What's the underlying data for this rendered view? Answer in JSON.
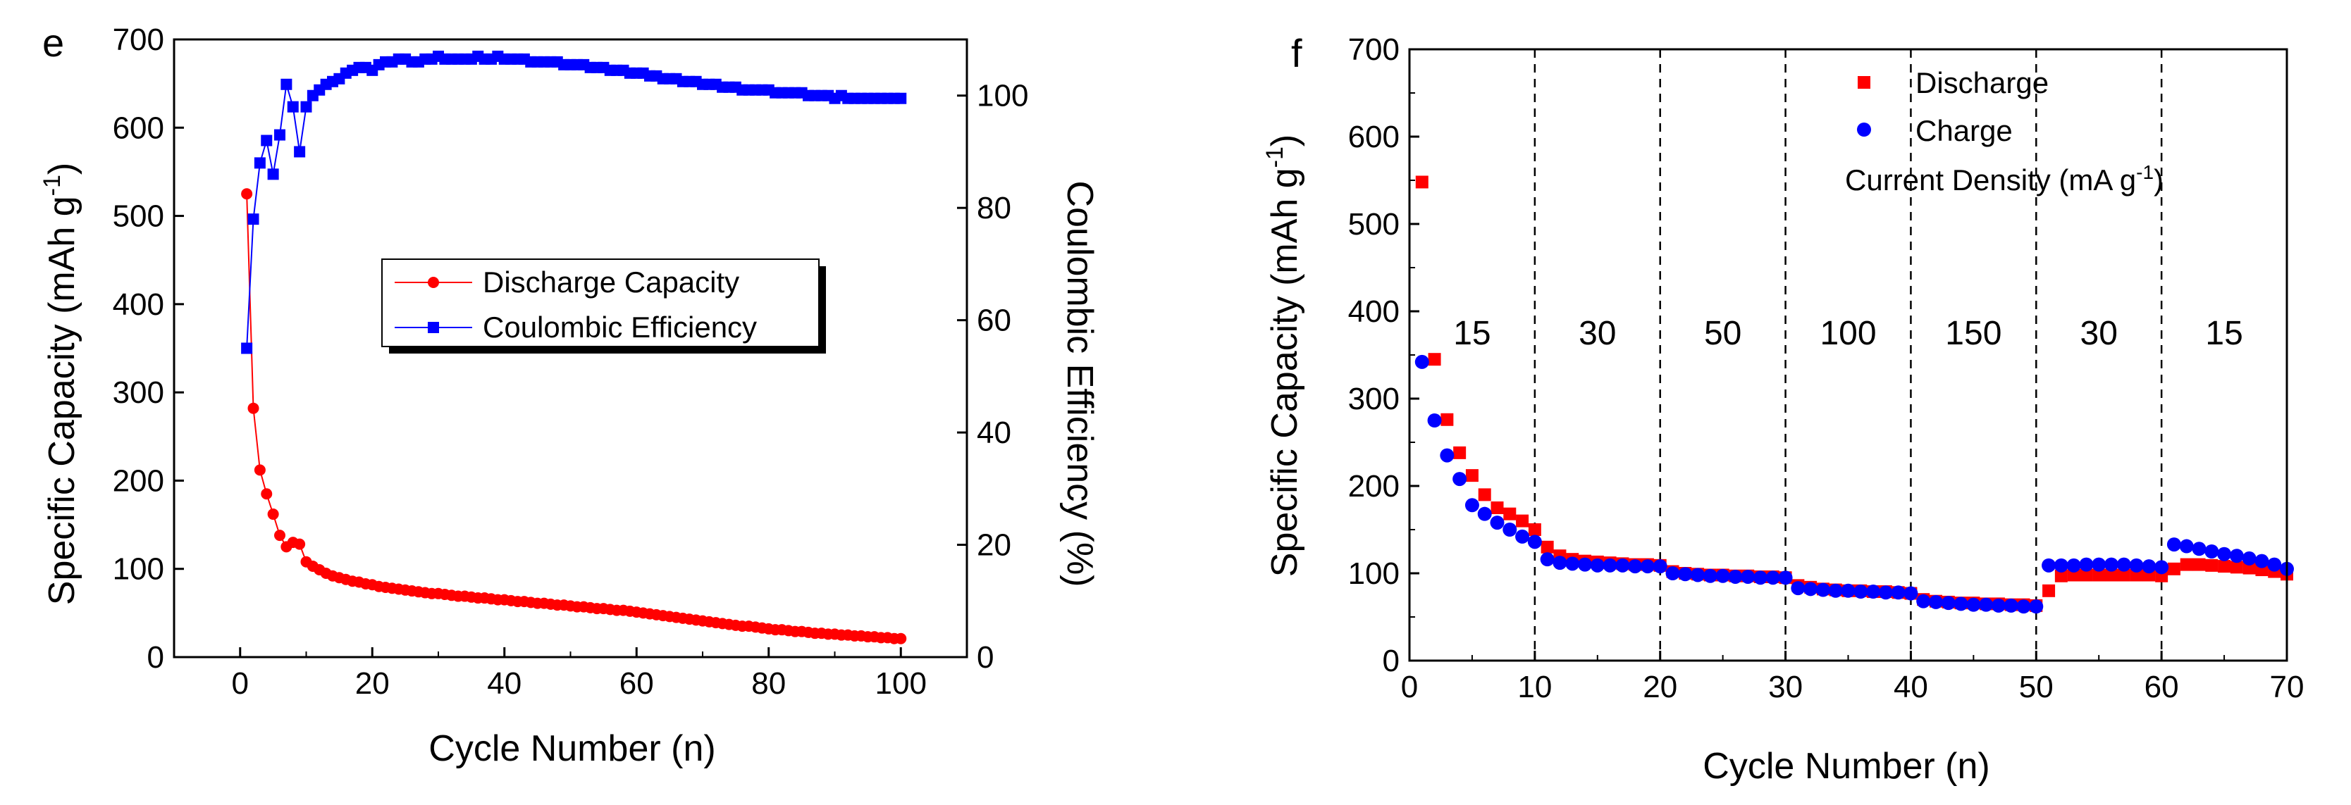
{
  "chart_data": [
    {
      "panel_label": "e",
      "type": "scatter",
      "xlabel": "Cycle Number (n)",
      "ylabel": "Specific Capacity (mAh g",
      "ylabel_sup": "-1",
      "ylabel_end": ")",
      "y2label": "Coulombic Efficiency (%)",
      "xlim": [
        -10,
        110
      ],
      "ylim": [
        0,
        700
      ],
      "y2lim": [
        0,
        110
      ],
      "xticks": [
        "0",
        "20",
        "40",
        "60",
        "80",
        "100"
      ],
      "yticks": [
        "0",
        "100",
        "200",
        "300",
        "400",
        "500",
        "600",
        "700"
      ],
      "y2ticks": [
        "0",
        "20",
        "40",
        "60",
        "80",
        "100"
      ],
      "legend": [
        {
          "label": "Discharge Capacity",
          "color": "#ff0000",
          "marker": "circle"
        },
        {
          "label": "Coulombic Efficiency",
          "color": "#0000ff",
          "marker": "square"
        }
      ],
      "series": [
        {
          "name": "Discharge Capacity",
          "axis": "left",
          "color": "#ff0000",
          "x": [
            1,
            2,
            3,
            4,
            5,
            6,
            7,
            8,
            9,
            10,
            11,
            12,
            13,
            14,
            15,
            16,
            17,
            18,
            19,
            20,
            21,
            22,
            23,
            24,
            25,
            26,
            27,
            28,
            29,
            30,
            31,
            32,
            33,
            34,
            35,
            36,
            37,
            38,
            39,
            40,
            41,
            42,
            43,
            44,
            45,
            46,
            47,
            48,
            49,
            50,
            51,
            52,
            53,
            54,
            55,
            56,
            57,
            58,
            59,
            60,
            61,
            62,
            63,
            64,
            65,
            66,
            67,
            68,
            69,
            70,
            71,
            72,
            73,
            74,
            75,
            76,
            77,
            78,
            79,
            80,
            81,
            82,
            83,
            84,
            85,
            86,
            87,
            88,
            89,
            90,
            91,
            92,
            93,
            94,
            95,
            96,
            97,
            98,
            99,
            100
          ],
          "values": [
            525,
            282,
            212,
            185,
            162,
            138,
            125,
            130,
            128,
            108,
            103,
            99,
            95,
            92,
            90,
            88,
            86,
            85,
            83,
            82,
            80,
            79,
            78,
            77,
            76,
            75,
            74,
            73,
            72,
            72,
            71,
            70,
            69,
            69,
            68,
            67,
            67,
            66,
            65,
            65,
            64,
            63,
            63,
            62,
            61,
            61,
            60,
            59,
            59,
            58,
            57,
            57,
            56,
            55,
            55,
            54,
            53,
            53,
            52,
            51,
            50,
            49,
            48,
            47,
            46,
            45,
            44,
            43,
            42,
            41,
            40,
            39,
            38,
            37,
            36,
            35,
            35,
            34,
            33,
            32,
            31,
            31,
            30,
            29,
            29,
            28,
            27,
            27,
            26,
            26,
            25,
            25,
            24,
            24,
            23,
            23,
            22,
            22,
            21,
            21
          ]
        },
        {
          "name": "Coulombic Efficiency",
          "axis": "right",
          "color": "#0000ff",
          "x": [
            1,
            2,
            3,
            4,
            5,
            6,
            7,
            8,
            9,
            10,
            11,
            12,
            13,
            14,
            15,
            16,
            17,
            18,
            19,
            20,
            21,
            22,
            23,
            24,
            25,
            26,
            27,
            28,
            29,
            30,
            31,
            32,
            33,
            34,
            35,
            36,
            37,
            38,
            39,
            40,
            41,
            42,
            43,
            44,
            45,
            46,
            47,
            48,
            49,
            50,
            51,
            52,
            53,
            54,
            55,
            56,
            57,
            58,
            59,
            60,
            61,
            62,
            63,
            64,
            65,
            66,
            67,
            68,
            69,
            70,
            71,
            72,
            73,
            74,
            75,
            76,
            77,
            78,
            79,
            80,
            81,
            82,
            83,
            84,
            85,
            86,
            87,
            88,
            89,
            90,
            91,
            92,
            93,
            94,
            95,
            96,
            97,
            98,
            99,
            100
          ],
          "values": [
            55,
            78,
            88,
            92,
            86,
            93,
            102,
            98,
            90,
            98,
            100,
            101,
            102,
            102.5,
            103,
            104,
            104.5,
            105,
            105,
            104.5,
            105.5,
            106,
            106,
            106.5,
            106.5,
            106,
            106,
            106.5,
            106.5,
            107,
            106.5,
            106.5,
            106.5,
            106.5,
            106.5,
            107,
            106.5,
            106.5,
            107,
            106.5,
            106.5,
            106.5,
            106.5,
            106,
            106,
            106,
            106,
            106,
            105.5,
            105.5,
            105.5,
            105.5,
            105,
            105,
            105,
            104.5,
            104.5,
            104.5,
            104,
            104,
            104,
            103.5,
            103.5,
            103,
            103,
            103,
            102.5,
            102.5,
            102.5,
            102,
            102,
            102,
            101.5,
            101.5,
            101.5,
            101,
            101,
            101,
            101,
            101,
            100.5,
            100.5,
            100.5,
            100.5,
            100.5,
            100,
            100,
            100,
            100,
            99.5,
            100,
            99.5,
            99.5,
            99.5,
            99.5,
            99.5,
            99.5,
            99.5,
            99.5,
            99.5
          ]
        }
      ]
    },
    {
      "panel_label": "f",
      "type": "scatter",
      "xlabel": "Cycle Number (n)",
      "ylabel": "Specific Capacity (mAh g",
      "ylabel_sup": "-1",
      "ylabel_end": ")",
      "xlim": [
        0,
        70
      ],
      "ylim": [
        0,
        700
      ],
      "xticks": [
        "0",
        "10",
        "20",
        "30",
        "40",
        "50",
        "60",
        "70"
      ],
      "yticks": [
        "0",
        "100",
        "200",
        "300",
        "400",
        "500",
        "600",
        "700"
      ],
      "vlines": [
        10,
        20,
        30,
        40,
        50,
        60
      ],
      "legend": [
        {
          "label": "Discharge",
          "color": "#ff0000",
          "marker": "square"
        },
        {
          "label": "Charge",
          "color": "#0000ff",
          "marker": "circle"
        }
      ],
      "legend_note": "Current Density (mA g",
      "legend_note_sup": "-1",
      "legend_note_end": ")",
      "regions": [
        {
          "label": "15",
          "x": 5
        },
        {
          "label": "30",
          "x": 15
        },
        {
          "label": "50",
          "x": 25
        },
        {
          "label": "100",
          "x": 35
        },
        {
          "label": "150",
          "x": 45
        },
        {
          "label": "30",
          "x": 55
        },
        {
          "label": "15",
          "x": 65
        }
      ],
      "series": [
        {
          "name": "Discharge",
          "color": "#ff0000",
          "x": [
            1,
            2,
            3,
            4,
            5,
            6,
            7,
            8,
            9,
            10,
            11,
            12,
            13,
            14,
            15,
            16,
            17,
            18,
            19,
            20,
            21,
            22,
            23,
            24,
            25,
            26,
            27,
            28,
            29,
            30,
            31,
            32,
            33,
            34,
            35,
            36,
            37,
            38,
            39,
            40,
            41,
            42,
            43,
            44,
            45,
            46,
            47,
            48,
            49,
            50,
            51,
            52,
            53,
            54,
            55,
            56,
            57,
            58,
            59,
            60,
            61,
            62,
            63,
            64,
            65,
            66,
            67,
            68,
            69,
            70
          ],
          "values": [
            548,
            345,
            276,
            238,
            212,
            190,
            175,
            168,
            160,
            150,
            130,
            120,
            116,
            114,
            113,
            112,
            111,
            110,
            110,
            109,
            102,
            100,
            99,
            98,
            98,
            97,
            97,
            96,
            96,
            95,
            86,
            84,
            82,
            81,
            80,
            80,
            79,
            79,
            78,
            77,
            70,
            68,
            67,
            66,
            66,
            65,
            65,
            64,
            64,
            63,
            80,
            97,
            98,
            98,
            98,
            98,
            98,
            98,
            98,
            97,
            105,
            110,
            110,
            109,
            108,
            107,
            106,
            104,
            102,
            99
          ]
        },
        {
          "name": "Charge",
          "color": "#0000ff",
          "x": [
            1,
            2,
            3,
            4,
            5,
            6,
            7,
            8,
            9,
            10,
            11,
            12,
            13,
            14,
            15,
            16,
            17,
            18,
            19,
            20,
            21,
            22,
            23,
            24,
            25,
            26,
            27,
            28,
            29,
            30,
            31,
            32,
            33,
            34,
            35,
            36,
            37,
            38,
            39,
            40,
            41,
            42,
            43,
            44,
            45,
            46,
            47,
            48,
            49,
            50,
            51,
            52,
            53,
            54,
            55,
            56,
            57,
            58,
            59,
            60,
            61,
            62,
            63,
            64,
            65,
            66,
            67,
            68,
            69,
            70
          ],
          "values": [
            342,
            275,
            235,
            208,
            178,
            168,
            158,
            150,
            142,
            136,
            116,
            112,
            111,
            110,
            109,
            109,
            109,
            108,
            108,
            108,
            100,
            99,
            98,
            97,
            97,
            96,
            96,
            95,
            95,
            95,
            83,
            82,
            81,
            80,
            80,
            79,
            79,
            78,
            78,
            77,
            68,
            67,
            66,
            65,
            64,
            64,
            63,
            63,
            62,
            62,
            109,
            109,
            109,
            110,
            110,
            110,
            110,
            109,
            108,
            107,
            133,
            131,
            128,
            125,
            122,
            120,
            117,
            114,
            110,
            105
          ]
        }
      ]
    }
  ]
}
